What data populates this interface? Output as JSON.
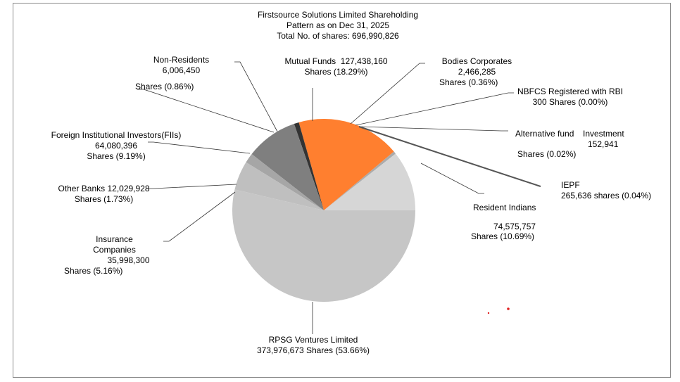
{
  "chart_data": {
    "type": "pie",
    "title": [
      "Firstsource Solutions Limited Shareholding",
      "Pattern as on Dec 31, 2025",
      "Total No. of shares: 696,990,826"
    ],
    "total_shares": 696990826,
    "slices": [
      {
        "label": "Resident Indians",
        "shares": "74,575,757",
        "percent_text": "Shares (10.69%)",
        "value": 10.69,
        "color": "#d6d6d6"
      },
      {
        "label": "IEPF",
        "shares": "265,636 shares (0.04%)",
        "value": 0.04,
        "color": "#5a5a5a"
      },
      {
        "label": "Alternative fund",
        "label2": "Investment",
        "shares": "152,941",
        "percent_text": "Shares (0.02%)",
        "value": 0.02,
        "color": "#8a8a8a"
      },
      {
        "label": "NBFCS Registered with RBI",
        "shares": "300 Shares (0.00%)",
        "value": 0.004,
        "color": "#9a9a9a"
      },
      {
        "label": "Bodies Corporates",
        "shares": "2,466,285",
        "percent_text": "Shares (0.36%)",
        "value": 0.36,
        "color": "#ababab"
      },
      {
        "label": "Mutual Funds  127,438,160",
        "percent_text": "Shares (18.29%)",
        "value": 18.29,
        "color": "#ff7f2f"
      },
      {
        "label": "Non-Residents",
        "shares": "6,006,450",
        "percent_text": "Shares (0.86%)",
        "value": 0.86,
        "color": "#333333"
      },
      {
        "label": "Foreign Institutional Investors(FIIs)",
        "shares": "64,080,396",
        "percent_text": "Shares (9.19%)",
        "value": 9.19,
        "color": "#7f7f7f"
      },
      {
        "label": "Other Banks 12,029,928",
        "percent_text": "Shares (1.73%)",
        "value": 1.73,
        "color": "#a6a6a6"
      },
      {
        "label": "Insurance",
        "label2": "Companies",
        "shares": "35,998,300",
        "percent_text": "Shares (5.16%)",
        "value": 5.16,
        "color": "#bfbfbf"
      },
      {
        "label": "RPSG Ventures Limited",
        "shares": "373,976,673 Shares (53.66%)",
        "value": 53.66,
        "color": "#c6c6c6"
      }
    ]
  }
}
